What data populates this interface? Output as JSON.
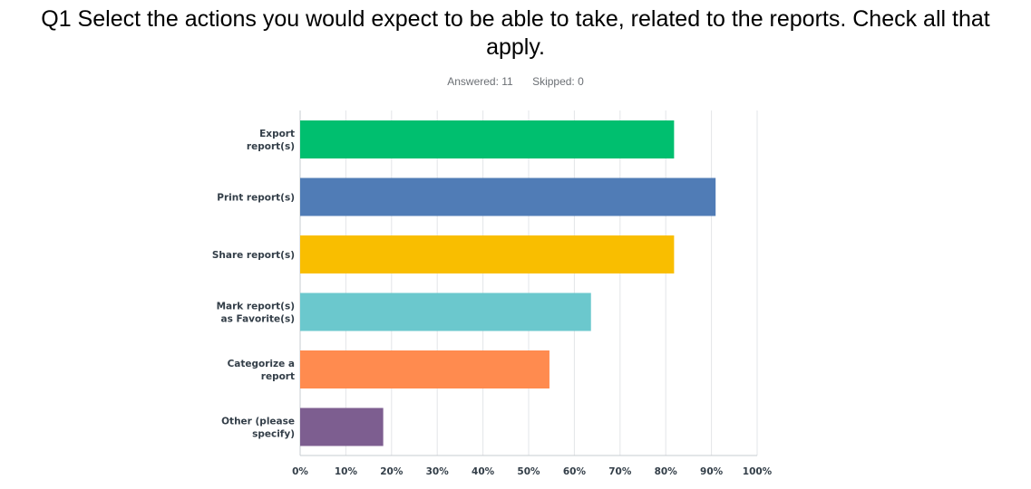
{
  "question": {
    "title": "Q1 Select the actions you would expect to be able to take, related to the reports. Check all that apply.",
    "answered": "Answered: 11",
    "skipped": "Skipped: 0"
  },
  "chart_data": {
    "type": "bar",
    "orientation": "horizontal",
    "categories": [
      [
        "Export",
        "report(s)"
      ],
      [
        "Print report(s)"
      ],
      [
        "Share report(s)"
      ],
      [
        "Mark report(s)",
        "as Favorite(s)"
      ],
      [
        "Categorize a",
        "report"
      ],
      [
        "Other (please",
        "specify)"
      ]
    ],
    "values": [
      81.82,
      90.91,
      81.82,
      63.64,
      54.55,
      18.18
    ],
    "colors": [
      "#00bf6f",
      "#507cb6",
      "#f9be00",
      "#6bc8cd",
      "#ff8b4f",
      "#7d5e90"
    ],
    "x_ticks": [
      "0%",
      "10%",
      "20%",
      "30%",
      "40%",
      "50%",
      "60%",
      "70%",
      "80%",
      "90%",
      "100%"
    ],
    "xlim": [
      0,
      100
    ],
    "grid": true,
    "legend": "none"
  }
}
